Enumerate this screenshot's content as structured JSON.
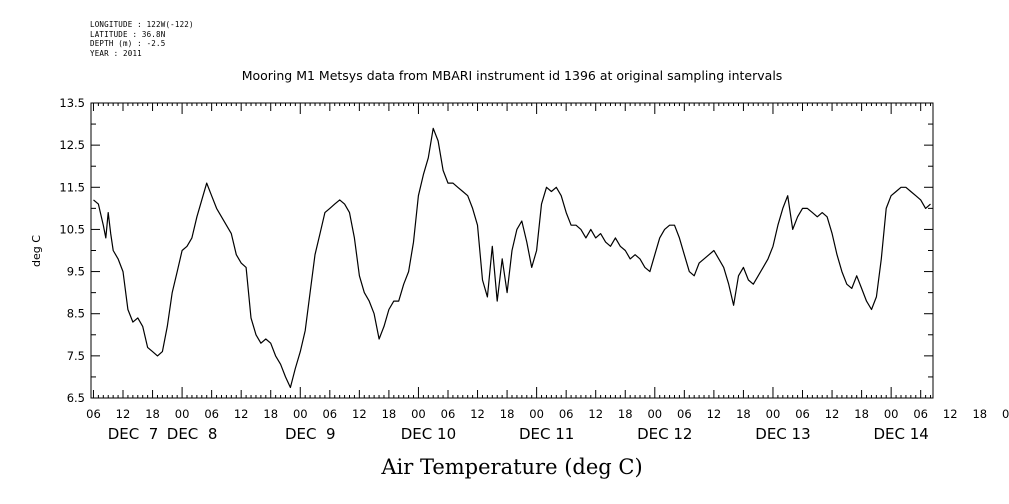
{
  "meta": {
    "longitude": "LONGITUDE : 122W(-122)",
    "latitude": "LATITUDE : 36.8N",
    "depth": "DEPTH (m) : -2.5",
    "year": "YEAR : 2011"
  },
  "chart_data": {
    "type": "line",
    "title": "Mooring M1 Metsys data from MBARI instrument id 1396 at original sampling intervals",
    "xlabel": "Air Temperature (deg C)",
    "ylabel": "deg C",
    "ylim": [
      6.5,
      13.5
    ],
    "yticks": [
      "6.5",
      "7.5",
      "8.5",
      "9.5",
      "10.5",
      "11.5",
      "12.5",
      "13.5"
    ],
    "x_hour_tick_labels": [
      "06",
      "12",
      "18",
      "00",
      "06",
      "12",
      "18",
      "00",
      "06",
      "12",
      "18",
      "00",
      "06",
      "12",
      "18",
      "00",
      "06",
      "12",
      "18",
      "00",
      "06",
      "12",
      "18",
      "00",
      "06",
      "12",
      "18",
      "00",
      "06",
      "12",
      "18",
      "00"
    ],
    "x_day_labels": [
      "DEC  7",
      "DEC  8",
      "DEC  9",
      "DEC 10",
      "DEC 11",
      "DEC 12",
      "DEC 13",
      "DEC 14"
    ],
    "x_units": "hours since 2011-12-07 00:00",
    "xlim": [
      5.5,
      176.5
    ],
    "grid": false,
    "series": [
      {
        "x": [
          6,
          7,
          8,
          8.5,
          9,
          9.5,
          10,
          11,
          12,
          13,
          14,
          15,
          16,
          17,
          18,
          19,
          20,
          21,
          22,
          23,
          24,
          25,
          26,
          27,
          28,
          29,
          30,
          31,
          32,
          33,
          34,
          35,
          36,
          37,
          38,
          39,
          40,
          41,
          42,
          43,
          44,
          45,
          46,
          47,
          48,
          49,
          50,
          51,
          52,
          53,
          54,
          55,
          56,
          57,
          58,
          59,
          60,
          61,
          62,
          63,
          64,
          65,
          66,
          67,
          68,
          69,
          70,
          71,
          72,
          73,
          74,
          75,
          76,
          77,
          78,
          79,
          80,
          81,
          82,
          83,
          84,
          85,
          86,
          87,
          88,
          89,
          90,
          91,
          92,
          93,
          94,
          95,
          96,
          97,
          98,
          99,
          100,
          101,
          102,
          103,
          104,
          105,
          106,
          107,
          108,
          109,
          110,
          111,
          112,
          113,
          114,
          115,
          116,
          117,
          118,
          119,
          120,
          121,
          122,
          123,
          124,
          125,
          126,
          127,
          128,
          129,
          130,
          131,
          132,
          133,
          134,
          135,
          136,
          137,
          138,
          139,
          140,
          141,
          142,
          143,
          144,
          145,
          146,
          147,
          148,
          149,
          150,
          151,
          152,
          153,
          154,
          155,
          156,
          157,
          158,
          159,
          160,
          161,
          162,
          163,
          164,
          165,
          166,
          167,
          168,
          169,
          170,
          171,
          172,
          173,
          174,
          175,
          176
        ],
        "y": [
          11.2,
          11.1,
          10.6,
          10.3,
          10.9,
          10.4,
          10.0,
          9.8,
          9.5,
          8.6,
          8.3,
          8.4,
          8.2,
          7.7,
          7.6,
          7.5,
          7.6,
          8.2,
          9.0,
          9.5,
          10.0,
          10.1,
          10.3,
          10.8,
          11.2,
          11.6,
          11.3,
          11.0,
          10.8,
          10.6,
          10.4,
          9.9,
          9.7,
          9.6,
          8.4,
          8.0,
          7.8,
          7.9,
          7.8,
          7.5,
          7.3,
          7.0,
          6.75,
          7.2,
          7.6,
          8.1,
          9.0,
          9.9,
          10.4,
          10.9,
          11.0,
          11.1,
          11.2,
          11.1,
          10.9,
          10.3,
          9.4,
          9.0,
          8.8,
          8.5,
          7.9,
          8.2,
          8.6,
          8.8,
          8.8,
          9.2,
          9.5,
          10.2,
          11.3,
          11.8,
          12.2,
          12.9,
          12.6,
          11.9,
          11.6,
          11.6,
          11.5,
          11.4,
          11.3,
          11.0,
          10.6,
          9.3,
          8.9,
          10.1,
          8.8,
          9.8,
          9.0,
          10.0,
          10.5,
          10.7,
          10.2,
          9.6,
          10.0,
          11.1,
          11.5,
          11.4,
          11.5,
          11.3,
          10.9,
          10.6,
          10.6,
          10.5,
          10.3,
          10.5,
          10.3,
          10.4,
          10.2,
          10.1,
          10.3,
          10.1,
          10.0,
          9.8,
          9.9,
          9.8,
          9.6,
          9.5,
          9.9,
          10.3,
          10.5,
          10.6,
          10.6,
          10.3,
          9.9,
          9.5,
          9.4,
          9.7,
          9.8,
          9.9,
          10.0,
          9.8,
          9.6,
          9.2,
          8.7,
          9.4,
          9.6,
          9.3,
          9.2,
          9.4,
          9.6,
          9.8,
          10.1,
          10.6,
          11.0,
          11.3,
          10.5,
          10.8,
          11.0,
          11.0,
          10.9,
          10.8,
          10.9,
          10.8,
          10.4,
          9.9,
          9.5,
          9.2,
          9.1,
          9.4,
          9.1,
          8.8,
          8.6,
          8.9,
          9.8,
          11.0,
          11.3,
          11.4,
          11.5,
          11.5,
          11.4,
          11.3,
          11.2,
          11.0,
          11.1
        ]
      }
    ]
  }
}
